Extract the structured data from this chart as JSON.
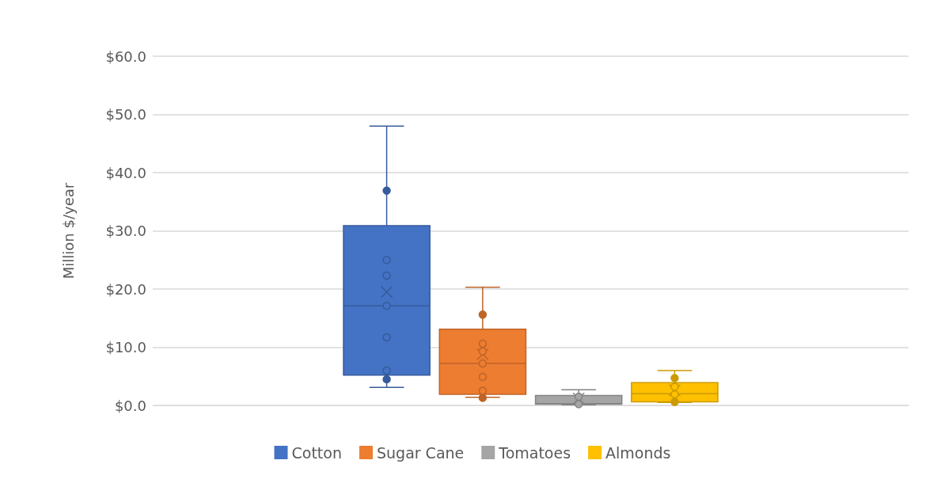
{
  "chart_data": {
    "type": "box",
    "ylabel": "Million $/year",
    "categories": [
      null
    ],
    "ylim": [
      0,
      60
    ],
    "yticks": [
      {
        "value": 0,
        "label": "$0.0"
      },
      {
        "value": 10,
        "label": "$10.0"
      },
      {
        "value": 20,
        "label": "$20.0"
      },
      {
        "value": 30,
        "label": "$30.0"
      },
      {
        "value": 40,
        "label": "$40.0"
      },
      {
        "value": 50,
        "label": "$50.0"
      },
      {
        "value": 60,
        "label": "$60.0"
      }
    ],
    "grid": "y",
    "legend": "bottom",
    "series": [
      {
        "name": "Cotton",
        "color": "#4472c4",
        "boxes": [
          {
            "low": 3.1,
            "q1": 5.2,
            "median": 17.1,
            "q3": 30.9,
            "high": 48.0,
            "mean": 19.5,
            "outliers": [
              36.9,
              4.5
            ]
          }
        ]
      },
      {
        "name": "Sugar Cane",
        "color": "#ed7d31",
        "boxes": [
          {
            "low": 1.4,
            "q1": 1.9,
            "median": 7.2,
            "q3": 13.1,
            "high": 20.3,
            "mean": 8.8,
            "outliers": [
              15.6,
              1.3
            ]
          }
        ]
      },
      {
        "name": "Tomatoes",
        "color": "#a5a5a5",
        "boxes": [
          {
            "low": 0.1,
            "q1": 0.2,
            "median": 0.3,
            "q3": 1.7,
            "high": 2.7,
            "mean": 1.2
          }
        ]
      },
      {
        "name": "Almonds",
        "color": "#ffc000",
        "boxes": [
          {
            "low": 0.5,
            "q1": 0.6,
            "median": 2.0,
            "q3": 3.9,
            "high": 6.0,
            "mean": 2.6,
            "outliers": [
              4.7,
              0.6
            ]
          }
        ]
      },
      {
        "type": "scatter",
        "color": "#4472c4",
        "marker": "circle",
        "x": [
          null,
          null,
          null,
          null,
          null
        ],
        "values": [
          25.0,
          22.3,
          17.1,
          11.7,
          6.0
        ]
      },
      {
        "type": "scatter",
        "color": "#ed7d31",
        "marker": "circle",
        "x": [
          null,
          null,
          null,
          null,
          null
        ],
        "values": [
          10.6,
          9.3,
          7.2,
          4.9,
          2.5
        ]
      },
      {
        "type": "scatter",
        "color": "#a5a5a5",
        "marker": "circle",
        "x": [
          null,
          null
        ],
        "values": [
          1.5,
          0.2
        ]
      },
      {
        "type": "scatter",
        "color": "#ffc000",
        "marker": "circle",
        "x": [
          null,
          null
        ],
        "values": [
          3.2,
          1.9
        ]
      }
    ]
  }
}
